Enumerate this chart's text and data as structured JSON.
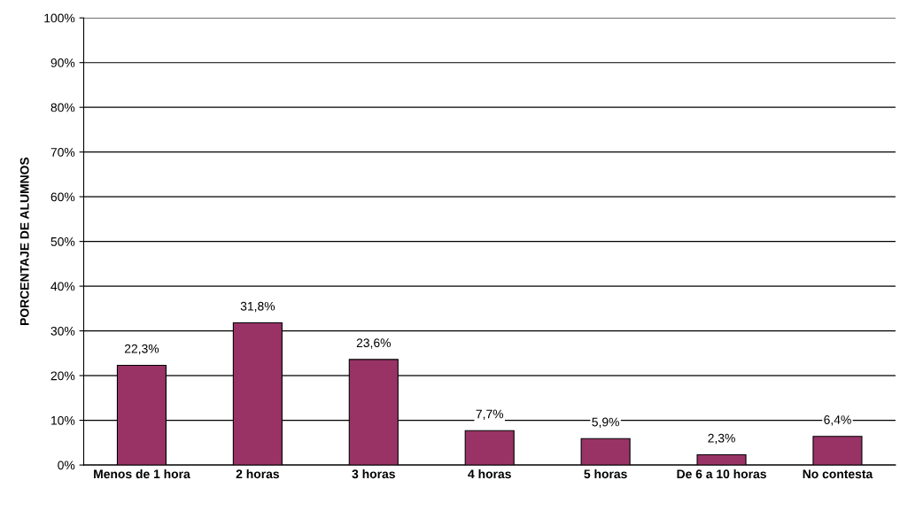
{
  "chart_data": {
    "type": "bar",
    "ylabel": "PORCENTAJE DE ALUMNOS",
    "categories": [
      "Menos de 1 hora",
      "2 horas",
      "3 horas",
      "4 horas",
      "5 horas",
      "De 6 a 10 horas",
      "No contesta"
    ],
    "values": [
      22.3,
      31.8,
      23.6,
      7.7,
      5.9,
      2.3,
      6.4
    ],
    "value_labels": [
      "22,3%",
      "31,8%",
      "23,6%",
      "7,7%",
      "5,9%",
      "2,3%",
      "6,4%"
    ],
    "color": "#993366",
    "ylim": [
      0,
      100
    ],
    "yticks": [
      {
        "value": 0,
        "label": "0%"
      },
      {
        "value": 10,
        "label": "10%"
      },
      {
        "value": 20,
        "label": "20%"
      },
      {
        "value": 30,
        "label": "30%"
      },
      {
        "value": 40,
        "label": "40%"
      },
      {
        "value": 50,
        "label": "50%"
      },
      {
        "value": 60,
        "label": "60%"
      },
      {
        "value": 70,
        "label": "70%"
      },
      {
        "value": 80,
        "label": "80%"
      },
      {
        "value": 90,
        "label": "90%"
      },
      {
        "value": 100,
        "label": "100%"
      }
    ],
    "grid": "y"
  }
}
